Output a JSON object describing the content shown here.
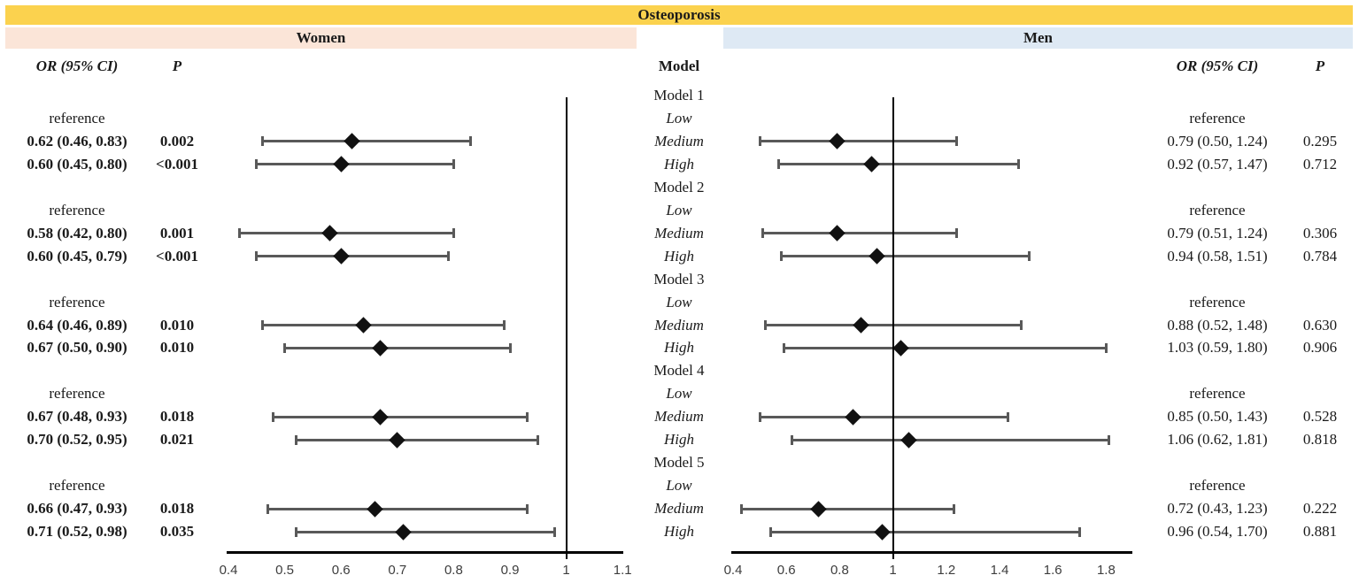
{
  "chart_data": {
    "type": "forest",
    "title": "Osteoporosis",
    "group_headers": [
      "Women",
      "Men"
    ],
    "column_headers": {
      "or": "OR (95% CI)",
      "p": "P",
      "model": "Model"
    },
    "reference_label": "reference",
    "colors": {
      "title_bg": "#FBD24E",
      "women_bg": "#FBE5D8",
      "men_bg": "#DEE9F4",
      "whisker": "#595959",
      "marker": "#111111",
      "axis": "#000000"
    },
    "axes": {
      "women": {
        "ticks": [
          "0.4",
          "0.5",
          "0.6",
          "0.7",
          "0.8",
          "0.9",
          "1",
          "1.1"
        ],
        "min": 0.4,
        "max": 1.1,
        "ref_line": 1
      },
      "men": {
        "ticks": [
          "0.4",
          "0.6",
          "0.8",
          "1",
          "1.2",
          "1.4",
          "1.6",
          "1.8"
        ],
        "min": 0.4,
        "max": 1.9,
        "ref_line": 1
      }
    },
    "models": [
      {
        "name": "Model 1",
        "rows": [
          {
            "level": "Low",
            "women": {
              "or_text": "reference"
            },
            "men": {
              "or_text": "reference"
            }
          },
          {
            "level": "Medium",
            "women": {
              "or_text": "0.62 (0.46, 0.83)",
              "p_text": "0.002",
              "est": 0.62,
              "lo": 0.46,
              "hi": 0.83
            },
            "men": {
              "or_text": "0.79 (0.50, 1.24)",
              "p_text": "0.295",
              "est": 0.79,
              "lo": 0.5,
              "hi": 1.24
            }
          },
          {
            "level": "High",
            "women": {
              "or_text": "0.60 (0.45, 0.80)",
              "p_text": "<0.001",
              "est": 0.6,
              "lo": 0.45,
              "hi": 0.8
            },
            "men": {
              "or_text": "0.92 (0.57, 1.47)",
              "p_text": "0.712",
              "est": 0.92,
              "lo": 0.57,
              "hi": 1.47
            }
          }
        ]
      },
      {
        "name": "Model 2",
        "rows": [
          {
            "level": "Low",
            "women": {
              "or_text": "reference"
            },
            "men": {
              "or_text": "reference"
            }
          },
          {
            "level": "Medium",
            "women": {
              "or_text": "0.58 (0.42, 0.80)",
              "p_text": "0.001",
              "est": 0.58,
              "lo": 0.42,
              "hi": 0.8
            },
            "men": {
              "or_text": "0.79 (0.51, 1.24)",
              "p_text": "0.306",
              "est": 0.79,
              "lo": 0.51,
              "hi": 1.24
            }
          },
          {
            "level": "High",
            "women": {
              "or_text": "0.60 (0.45, 0.79)",
              "p_text": "<0.001",
              "est": 0.6,
              "lo": 0.45,
              "hi": 0.79
            },
            "men": {
              "or_text": "0.94 (0.58, 1.51)",
              "p_text": "0.784",
              "est": 0.94,
              "lo": 0.58,
              "hi": 1.51
            }
          }
        ]
      },
      {
        "name": "Model 3",
        "rows": [
          {
            "level": "Low",
            "women": {
              "or_text": "reference"
            },
            "men": {
              "or_text": "reference"
            }
          },
          {
            "level": "Medium",
            "women": {
              "or_text": "0.64 (0.46, 0.89)",
              "p_text": "0.010",
              "est": 0.64,
              "lo": 0.46,
              "hi": 0.89
            },
            "men": {
              "or_text": "0.88 (0.52, 1.48)",
              "p_text": "0.630",
              "est": 0.88,
              "lo": 0.52,
              "hi": 1.48
            }
          },
          {
            "level": "High",
            "women": {
              "or_text": "0.67 (0.50, 0.90)",
              "p_text": "0.010",
              "est": 0.67,
              "lo": 0.5,
              "hi": 0.9
            },
            "men": {
              "or_text": "1.03 (0.59, 1.80)",
              "p_text": "0.906",
              "est": 1.03,
              "lo": 0.59,
              "hi": 1.8
            }
          }
        ]
      },
      {
        "name": "Model 4",
        "rows": [
          {
            "level": "Low",
            "women": {
              "or_text": "reference"
            },
            "men": {
              "or_text": "reference"
            }
          },
          {
            "level": "Medium",
            "women": {
              "or_text": "0.67 (0.48, 0.93)",
              "p_text": "0.018",
              "est": 0.67,
              "lo": 0.48,
              "hi": 0.93
            },
            "men": {
              "or_text": "0.85 (0.50, 1.43)",
              "p_text": "0.528",
              "est": 0.85,
              "lo": 0.5,
              "hi": 1.43
            }
          },
          {
            "level": "High",
            "women": {
              "or_text": "0.70 (0.52, 0.95)",
              "p_text": "0.021",
              "est": 0.7,
              "lo": 0.52,
              "hi": 0.95
            },
            "men": {
              "or_text": "1.06 (0.62, 1.81)",
              "p_text": "0.818",
              "est": 1.06,
              "lo": 0.62,
              "hi": 1.81
            }
          }
        ]
      },
      {
        "name": "Model 5",
        "rows": [
          {
            "level": "Low",
            "women": {
              "or_text": "reference"
            },
            "men": {
              "or_text": "reference"
            }
          },
          {
            "level": "Medium",
            "women": {
              "or_text": "0.66 (0.47, 0.93)",
              "p_text": "0.018",
              "est": 0.66,
              "lo": 0.47,
              "hi": 0.93
            },
            "men": {
              "or_text": "0.72 (0.43, 1.23)",
              "p_text": "0.222",
              "est": 0.72,
              "lo": 0.43,
              "hi": 1.23
            }
          },
          {
            "level": "High",
            "women": {
              "or_text": "0.71 (0.52, 0.98)",
              "p_text": "0.035",
              "est": 0.71,
              "lo": 0.52,
              "hi": 0.98
            },
            "men": {
              "or_text": "0.96 (0.54, 1.70)",
              "p_text": "0.881",
              "est": 0.96,
              "lo": 0.54,
              "hi": 1.7
            }
          }
        ]
      }
    ]
  }
}
